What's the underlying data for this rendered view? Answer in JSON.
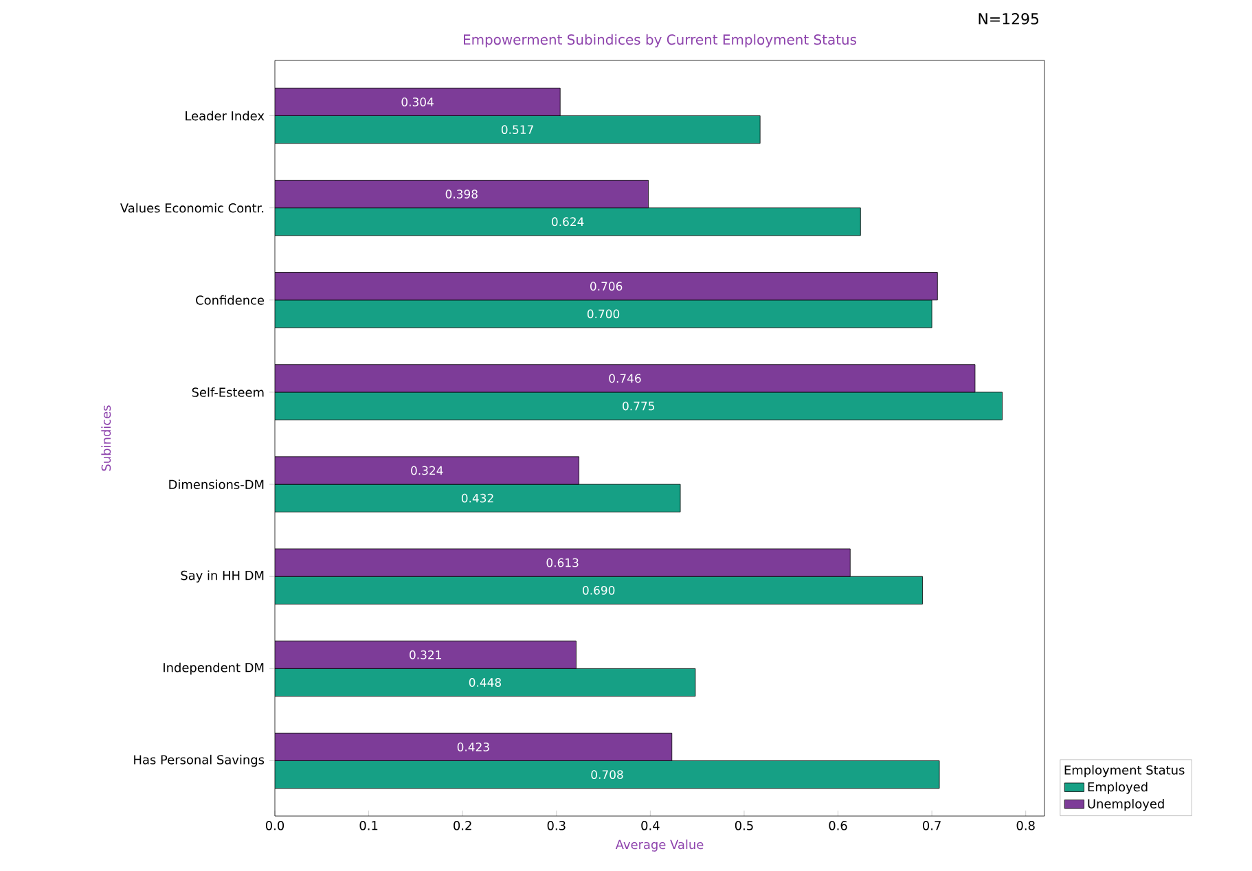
{
  "chart_data": {
    "type": "bar",
    "orientation": "horizontal",
    "title": "Empowerment Subindices by Current Employment Status",
    "xlabel": "Average Value",
    "ylabel": "Subindices",
    "legend_title": "Employment Status",
    "legend": "bottom right",
    "annotations": [
      "N=1295"
    ],
    "categories": [
      "Leader Index",
      "Values Economic Contr.",
      "Confidence",
      "Self-Esteem",
      "Dimensions-DM",
      "Say in HH DM",
      "Independent DM",
      "Has Personal Savings"
    ],
    "series": [
      {
        "name": "Employed",
        "color": "#16a085",
        "values": [
          0.517,
          0.624,
          0.7,
          0.775,
          0.432,
          0.69,
          0.448,
          0.708
        ],
        "value_labels": [
          "0.517",
          "0.624",
          "0.700",
          "0.775",
          "0.432",
          "0.690",
          "0.448",
          "0.708"
        ]
      },
      {
        "name": "Unemployed",
        "color": "#7d3c98",
        "values": [
          0.304,
          0.398,
          0.706,
          0.746,
          0.324,
          0.613,
          0.321,
          0.423
        ],
        "value_labels": [
          "0.304",
          "0.398",
          "0.706",
          "0.746",
          "0.324",
          "0.613",
          "0.321",
          "0.423"
        ]
      }
    ],
    "xlim": [
      0,
      0.82
    ],
    "xticks": [
      {
        "value": 0,
        "label": "0.0"
      },
      {
        "value": 0.1,
        "label": "0.1"
      },
      {
        "value": 0.2,
        "label": "0.2"
      },
      {
        "value": 0.3,
        "label": "0.3"
      },
      {
        "value": 0.4,
        "label": "0.4"
      },
      {
        "value": 0.5,
        "label": "0.5"
      },
      {
        "value": 0.6,
        "label": "0.6"
      },
      {
        "value": 0.7,
        "label": "0.7"
      },
      {
        "value": 0.8,
        "label": "0.8"
      }
    ]
  }
}
